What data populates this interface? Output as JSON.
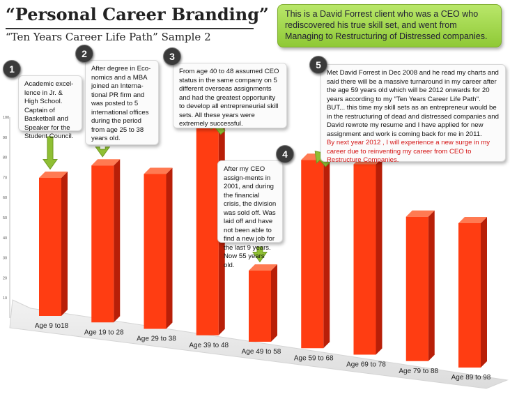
{
  "title": "“Personal Career Branding”",
  "subtitle": "“Ten Years Career Life Path” Sample 2",
  "banner": "This is a David Forrest client who was a CEO who rediscovered his true skill set, and went from Managing to Restructuring of Distressed companies.",
  "callouts": [
    {
      "number": "1",
      "text": "Academic excel-lence in Jr. & High School. Captain of Basketball and Speaker for the Student Council."
    },
    {
      "number": "2",
      "text": "After degree in Eco-nomics and a MBA joined an Interna-tional PR firm and was posted to 5 international offices during the period from age 25 to 38 years old."
    },
    {
      "number": "3",
      "text": "From age 40 to 48 assumed CEO status in the same company on 5 different overseas assignments and had the greatest opportunity to develop all entrepreneurial skill sets. All these years were extremely successful."
    },
    {
      "number": "4",
      "text": "After my CEO assign-ments in 2001, and during the financial crisis, the division was sold off. Was laid off and have not been able to find a new job for the last 9 years. Now 55 years old."
    },
    {
      "number": "5",
      "text": "Met David Forrest in Dec 2008 and he read my charts and said there will be a massive turnaround in my career after the age 59 years old which will be 2012 onwards for 20 years according to my \"Ten Years Career Life Path\". BUT... this time my skill sets as an entrepreneur would be in the restructuring of dead and distressed companies and David rewrote my resume and I have applied for new assignment and work is coming back for me in 2011.",
      "highlight": "By next year 2012 , I will experience a new surge in my career due to reinventing my career from CEO to Restructure Companies."
    }
  ],
  "chart_data": {
    "type": "bar",
    "title": "",
    "xlabel": "",
    "ylabel": "",
    "categories": [
      "Age 9 to18",
      "Age 19 to 28",
      "Age 29 to 38",
      "Age 39 to 48",
      "Age 49 to 58",
      "Age 59 to 68",
      "Age 69 to 78",
      "Age 79 to 88",
      "Age 89 to 98"
    ],
    "values": [
      66,
      75,
      74,
      100,
      34,
      90,
      91,
      69,
      69
    ],
    "ylim": [
      0,
      100
    ],
    "yticks": [
      10,
      20,
      30,
      40,
      50,
      60,
      70,
      80,
      90,
      100
    ],
    "grid": false,
    "bar_color": "#ff3d12",
    "arrow_color": "#8fbf34"
  }
}
